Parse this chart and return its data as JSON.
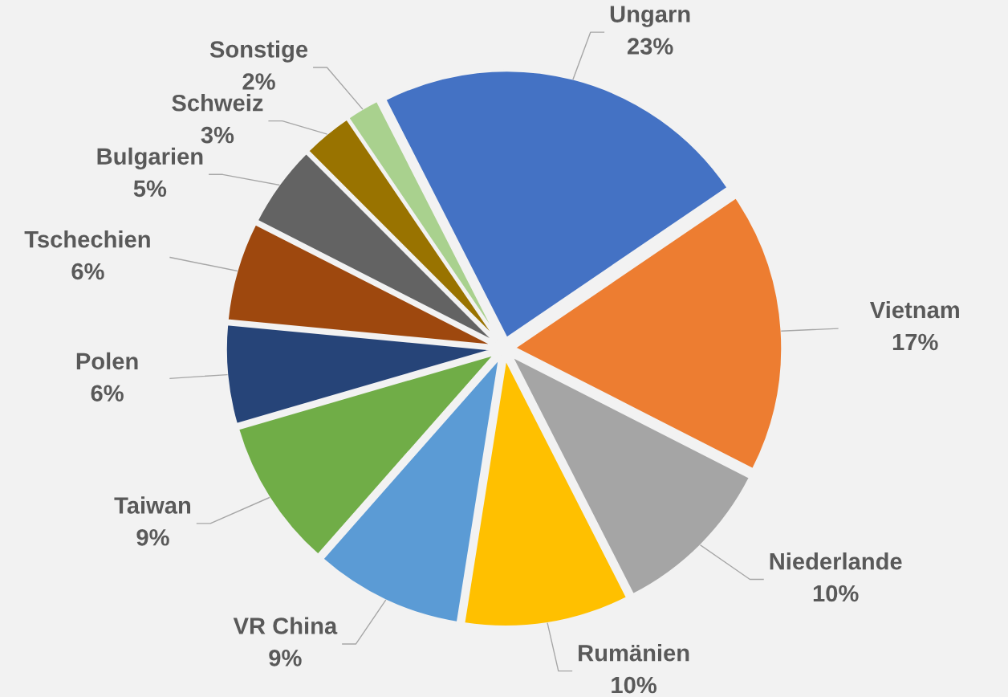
{
  "chart_data": {
    "type": "pie",
    "categories": [
      "Ungarn",
      "Vietnam",
      "Niederlande",
      "Rumänien",
      "VR China",
      "Taiwan",
      "Polen",
      "Tschechien",
      "Bulgarien",
      "Schweiz",
      "Sonstige"
    ],
    "values": [
      23,
      17,
      10,
      10,
      9,
      9,
      6,
      6,
      5,
      3,
      2
    ],
    "value_labels": [
      "23%",
      "17%",
      "10%",
      "10%",
      "9%",
      "9%",
      "6%",
      "6%",
      "5%",
      "3%",
      "2%"
    ],
    "colors": [
      "#4472c4",
      "#ed7d31",
      "#a5a5a5",
      "#ffc000",
      "#5b9bd5",
      "#70ad47",
      "#264478",
      "#9e480e",
      "#636363",
      "#997300",
      "#a9d18e"
    ],
    "legend": false
  }
}
